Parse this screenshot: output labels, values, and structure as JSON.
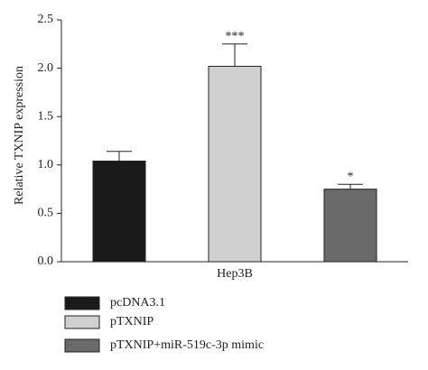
{
  "chart_data": {
    "type": "bar",
    "y_label": "Relative TXNIP expression",
    "categories": [
      "Hep3B"
    ],
    "series": [
      {
        "name": "pcDNA3.1",
        "color": "#1a1a1a",
        "values": [
          1.04
        ],
        "errors": [
          0.1
        ]
      },
      {
        "name": "pTXNIP",
        "color": "#d0d0d0",
        "values": [
          2.02
        ],
        "errors": [
          0.23
        ],
        "significance": "***"
      },
      {
        "name": "pTXNIP+miR-519c-3p mimic",
        "color": "#6a6a6a",
        "values": [
          0.75
        ],
        "errors": [
          0.05
        ],
        "significance": "*"
      }
    ],
    "ylim": [
      0,
      2.5
    ],
    "yticks": [
      {
        "value": 0,
        "label": "0.0"
      },
      0.5,
      {
        "value": 1,
        "label": "1.0"
      },
      1.5,
      {
        "value": 2,
        "label": "2.0"
      },
      2.5
    ],
    "grid": false,
    "legend": "bottom-left"
  }
}
